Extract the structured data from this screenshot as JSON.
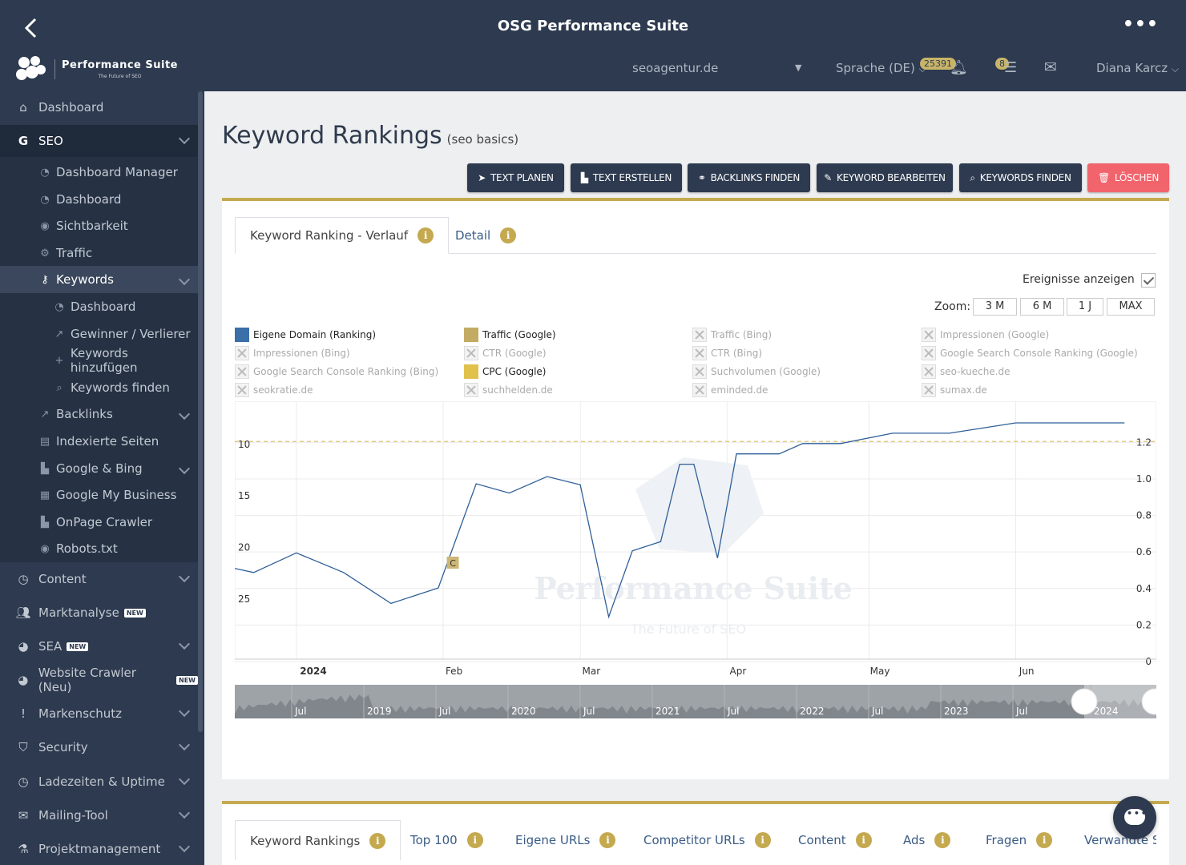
{
  "app": {
    "title": "OSG Performance Suite"
  },
  "logo": {
    "title": "Performance Suite",
    "subtitle": "The Future of SEO"
  },
  "header": {
    "domain": "seoagentur.de",
    "language": "Sprache (DE)",
    "notifications_count": "25391",
    "tasks_count": "8",
    "user": "Diana Karcz"
  },
  "sidebar": {
    "dashboard": "Dashboard",
    "seo": "SEO",
    "seo_items": [
      "Dashboard Manager",
      "Dashboard",
      "Sichtbarkeit",
      "Traffic"
    ],
    "keywords": "Keywords",
    "keywords_items": [
      "Dashboard",
      "Gewinner / Verlierer",
      "Keywords hinzufügen",
      "Keywords finden"
    ],
    "seo_items_2": [
      "Backlinks",
      "Indexierte Seiten",
      "Google & Bing",
      "Google My Business",
      "OnPage Crawler",
      "Robots.txt"
    ],
    "sections": [
      "Content",
      "Marktanalyse",
      "SEA",
      "Website Crawler (Neu)",
      "Markenschutz",
      "Security",
      "Ladezeiten & Uptime",
      "Mailing-Tool",
      "Projektmanagement"
    ],
    "new_tag": "NEW"
  },
  "page": {
    "title": "Keyword Rankings",
    "subtitle": "(seo basics)"
  },
  "actions": [
    "TEXT PLANEN",
    "TEXT ERSTELLEN",
    "BACKLINKS FINDEN",
    "KEYWORD BEARBEITEN",
    "KEYWORDS FINDEN",
    "LÖSCHEN"
  ],
  "tabs": [
    "Keyword Ranking - Verlauf",
    "Detail"
  ],
  "controls": {
    "events_label": "Ereignisse anzeigen",
    "zoom_label": "Zoom:",
    "zoom_options": [
      "3 M",
      "6 M",
      "1 J",
      "MAX"
    ]
  },
  "legend": [
    {
      "label": "Eigene Domain (Ranking)",
      "state": "on",
      "color": "#3a6fa8"
    },
    {
      "label": "Traffic (Google)",
      "state": "on",
      "color": "#c4ab63"
    },
    {
      "label": "Traffic (Bing)",
      "state": "off"
    },
    {
      "label": "Impressionen (Google)",
      "state": "off"
    },
    {
      "label": "Impressionen (Bing)",
      "state": "off"
    },
    {
      "label": "CTR (Google)",
      "state": "off"
    },
    {
      "label": "CTR (Bing)",
      "state": "off"
    },
    {
      "label": "Google Search Console Ranking (Google)",
      "state": "off"
    },
    {
      "label": "Google Search Console Ranking (Bing)",
      "state": "off"
    },
    {
      "label": "CPC (Google)",
      "state": "on",
      "color": "#e0c14a"
    },
    {
      "label": "Suchvolumen (Google)",
      "state": "off"
    },
    {
      "label": "seo-kueche.de",
      "state": "off"
    },
    {
      "label": "seokratie.de",
      "state": "off"
    },
    {
      "label": "suchhelden.de",
      "state": "off"
    },
    {
      "label": "eminded.de",
      "state": "off"
    },
    {
      "label": "sumax.de",
      "state": "off"
    }
  ],
  "chart_data": {
    "type": "line",
    "x_labels": [
      "2024",
      "Feb",
      "Mar",
      "Apr",
      "May",
      "Jun"
    ],
    "y_left_ticks": [
      "10",
      "15",
      "20",
      "25"
    ],
    "y_right_ticks": [
      "1.2",
      "1.0",
      "0.8",
      "0.6",
      "0.4",
      "0.2",
      "0"
    ],
    "y_left_inverted": true,
    "reference_line": {
      "series": "CPC (Google)",
      "value": 1.17,
      "style": "dashed"
    },
    "event_marker": {
      "label": "C",
      "x": "2024-01-15"
    },
    "series": [
      {
        "name": "Eigene Domain (Ranking)",
        "x": [
          "2023-12-20",
          "2023-12-24",
          "2024-01-02",
          "2024-01-12",
          "2024-01-22",
          "2024-02-01",
          "2024-02-09",
          "2024-02-16",
          "2024-02-24",
          "2024-03-02",
          "2024-03-08",
          "2024-03-13",
          "2024-03-19",
          "2024-03-23",
          "2024-03-26",
          "2024-03-31",
          "2024-04-04",
          "2024-04-08",
          "2024-04-13",
          "2024-04-18",
          "2024-04-26",
          "2024-05-07",
          "2024-05-19",
          "2024-06-02",
          "2024-06-12",
          "2024-06-25"
        ],
        "values": [
          22.1,
          22.5,
          20.6,
          22.5,
          25.5,
          24.0,
          13.9,
          14.8,
          13.2,
          14.0,
          26.8,
          20.4,
          19.5,
          12.0,
          12.0,
          21.1,
          11.0,
          11.0,
          11.0,
          10.0,
          10.0,
          9.0,
          9.0,
          8.0,
          8.0,
          8.0
        ]
      }
    ],
    "navigator": {
      "labels": [
        "Jul",
        "2019",
        "Jul",
        "2020",
        "Jul",
        "2021",
        "Jul",
        "2022",
        "Jul",
        "2023",
        "Jul",
        "2024"
      ]
    }
  },
  "bottom_tabs": [
    "Keyword Rankings",
    "Top 100",
    "Eigene URLs",
    "Competitor URLs",
    "Content",
    "Ads",
    "Fragen",
    "Verwandte Su"
  ],
  "watermark": {
    "title": "Performance Suite",
    "subtitle": "The Future of SEO"
  }
}
